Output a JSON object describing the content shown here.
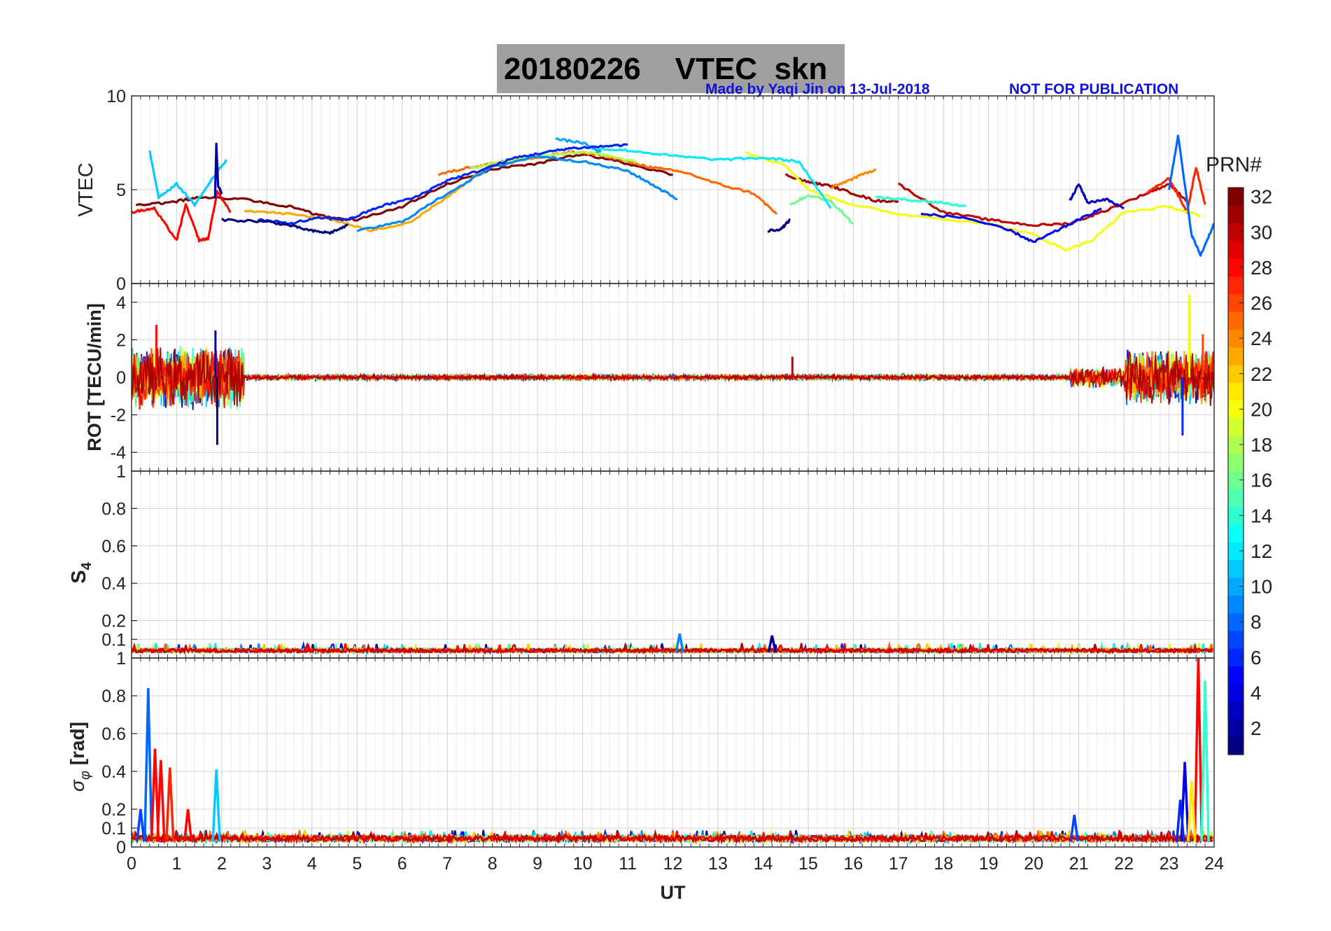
{
  "header": {
    "title": "20180226    VTEC  skn",
    "credit": "Made by Yaqi Jin on 13-Jul-2018",
    "notice": "NOT FOR PUBLICATION"
  },
  "colorbar": {
    "label": "PRN#",
    "ticks": [
      2,
      4,
      6,
      8,
      10,
      12,
      14,
      16,
      18,
      20,
      22,
      24,
      26,
      28,
      30,
      32
    ],
    "range": [
      1,
      32
    ],
    "colormap": "jet"
  },
  "chart_data": [
    {
      "type": "line",
      "panel": "vtec",
      "ylabel": "VTEC",
      "xlabel": "",
      "xlim": [
        0,
        24
      ],
      "ylim": [
        0,
        10
      ],
      "yticks": [
        0,
        5,
        10
      ],
      "xticks": [
        0,
        1,
        2,
        3,
        4,
        5,
        6,
        7,
        8,
        9,
        10,
        11,
        12,
        13,
        14,
        15,
        16,
        17,
        18,
        19,
        20,
        21,
        22,
        23,
        24
      ],
      "grid": true,
      "series": [
        {
          "prn": 32,
          "x": [
            0.1,
            0.8,
            1.5,
            2.5,
            3.5,
            4.2,
            5.0,
            6.0,
            7.0,
            8.0,
            9.0,
            10.0,
            11.0,
            12.0
          ],
          "y": [
            4.2,
            4.3,
            4.6,
            4.5,
            4.1,
            3.6,
            3.4,
            4.1,
            5.3,
            6.1,
            6.4,
            6.9,
            6.4,
            5.8
          ]
        },
        {
          "prn": 31,
          "x": [
            14.5,
            15.0,
            15.5,
            16.0,
            16.5,
            17.0
          ],
          "y": [
            5.8,
            5.4,
            5.2,
            4.8,
            4.4,
            4.4
          ]
        },
        {
          "prn": 30,
          "x": [
            17.0,
            18.0,
            19.0,
            20.0,
            20.8,
            21.5,
            22.5,
            23.0,
            23.4
          ],
          "y": [
            5.3,
            3.8,
            3.4,
            3.1,
            3.2,
            3.8,
            4.8,
            5.3,
            4.4
          ]
        },
        {
          "prn": 28,
          "x": [
            0.0,
            0.5,
            1.0,
            1.2,
            1.5,
            1.7,
            1.9,
            2.2
          ],
          "y": [
            3.8,
            4.0,
            2.3,
            4.2,
            2.3,
            2.4,
            4.9,
            3.8
          ]
        },
        {
          "prn": 27,
          "x": [
            22.5,
            23.0,
            23.4,
            23.6,
            23.8
          ],
          "y": [
            4.8,
            5.6,
            3.8,
            6.2,
            4.2
          ]
        },
        {
          "prn": 25,
          "x": [
            6.8,
            7.5,
            8.0,
            8.5,
            9.0,
            9.7,
            10.3,
            11.0,
            11.5,
            12.3,
            13.0,
            13.8,
            14.3
          ],
          "y": [
            5.8,
            6.2,
            6.4,
            6.6,
            6.7,
            7.0,
            6.9,
            6.5,
            6.2,
            5.9,
            5.3,
            4.8,
            3.7
          ]
        },
        {
          "prn": 24,
          "x": [
            15.5,
            16.0,
            16.5
          ],
          "y": [
            5.1,
            5.6,
            6.1
          ]
        },
        {
          "prn": 23,
          "x": [
            2.5,
            3.5,
            4.5,
            5.3,
            6.2,
            7.0,
            7.8,
            8.5
          ],
          "y": [
            3.9,
            3.7,
            3.4,
            2.8,
            3.3,
            4.6,
            6.1,
            6.7
          ]
        },
        {
          "prn": 20,
          "x": [
            13.6,
            14.5,
            15.0,
            16.0,
            17.0,
            19.0,
            20.0,
            20.7,
            21.3,
            22.0,
            23.0,
            23.7
          ],
          "y": [
            7.0,
            6.3,
            5.0,
            4.2,
            3.7,
            3.2,
            2.6,
            1.8,
            2.3,
            3.8,
            4.1,
            3.6
          ]
        },
        {
          "prn": 18,
          "x": [
            7.5,
            8.0,
            8.7,
            9.4,
            10.0,
            10.6,
            11.2
          ],
          "y": [
            6.1,
            6.4,
            6.7,
            6.9,
            7.0,
            6.8,
            6.5
          ]
        },
        {
          "prn": 16,
          "x": [
            14.6,
            15.0,
            15.5,
            16.0
          ],
          "y": [
            4.2,
            4.7,
            4.4,
            3.2
          ]
        },
        {
          "prn": 14,
          "x": [
            16.5,
            17.0,
            17.5,
            18.0,
            18.5
          ],
          "y": [
            4.6,
            4.5,
            4.4,
            4.3,
            4.1
          ]
        },
        {
          "prn": 12,
          "x": [
            10.2,
            11.0,
            12.0,
            13.0,
            14.0,
            14.8,
            15.5
          ],
          "y": [
            7.2,
            7.1,
            6.8,
            6.6,
            6.7,
            6.5,
            4.0
          ]
        },
        {
          "prn": 11,
          "x": [
            0.4,
            0.6,
            1.0,
            1.4,
            1.8,
            2.1
          ],
          "y": [
            7.1,
            4.6,
            5.3,
            4.2,
            5.6,
            6.6
          ]
        },
        {
          "prn": 10,
          "x": [
            9.4,
            10.0,
            10.4
          ],
          "y": [
            7.7,
            7.5,
            7.0
          ]
        },
        {
          "prn": 9,
          "x": [
            5.0,
            6.0,
            7.0,
            8.0,
            9.0,
            10.0,
            11.0,
            11.6,
            12.1
          ],
          "y": [
            2.8,
            3.3,
            4.8,
            6.2,
            6.8,
            6.5,
            6.0,
            5.2,
            4.5
          ]
        },
        {
          "prn": 8,
          "x": [
            23.0,
            23.2,
            23.5,
            23.7,
            24.0
          ],
          "y": [
            5.0,
            7.9,
            2.6,
            1.5,
            3.2
          ]
        },
        {
          "prn": 6,
          "x": [
            2.8,
            3.5,
            4.2,
            4.8,
            5.5,
            6.3,
            7.0,
            7.7,
            8.5,
            9.2,
            9.7,
            10.4,
            11.0
          ],
          "y": [
            3.4,
            3.2,
            3.5,
            3.4,
            4.1,
            4.6,
            5.5,
            6.0,
            6.7,
            7.0,
            7.2,
            7.3,
            7.4
          ]
        },
        {
          "prn": 5,
          "x": [
            17.5,
            18.5,
            19.5,
            20.0,
            20.5,
            21.0,
            21.5
          ],
          "y": [
            3.7,
            3.5,
            2.8,
            2.2,
            2.8,
            3.4,
            4.0
          ]
        },
        {
          "prn": 3,
          "x": [
            20.8,
            21.0,
            21.2,
            21.6,
            22.0
          ],
          "y": [
            4.4,
            5.3,
            4.3,
            4.5,
            4.0
          ]
        },
        {
          "prn": 1,
          "x": [
            2.0,
            3.0,
            3.5,
            4.0,
            4.4,
            4.8
          ],
          "y": [
            3.4,
            3.3,
            3.1,
            2.8,
            2.7,
            3.1
          ]
        },
        {
          "prn": 1,
          "x": [
            14.1,
            14.4,
            14.6
          ],
          "y": [
            2.8,
            2.9,
            3.4
          ]
        },
        {
          "prn": 2,
          "x": [
            1.85,
            1.88,
            1.92,
            2.0
          ],
          "y": [
            4.5,
            7.4,
            5.2,
            4.8
          ]
        }
      ]
    },
    {
      "type": "line",
      "panel": "rot",
      "ylabel": "ROT [TECU/min]",
      "xlabel": "",
      "xlim": [
        0,
        24
      ],
      "ylim": [
        -5,
        5
      ],
      "yticks": [
        -4,
        -2,
        0,
        2,
        4
      ],
      "grid": true,
      "noise": [
        {
          "x0": 0.0,
          "x1": 2.5,
          "amp": 1.8
        },
        {
          "x0": 2.5,
          "x1": 20.8,
          "amp": 0.15
        },
        {
          "x0": 20.8,
          "x1": 22.0,
          "amp": 0.6
        },
        {
          "x0": 22.0,
          "x1": 24.0,
          "amp": 1.6
        }
      ],
      "spikes": [
        {
          "x": 0.55,
          "y": 2.8,
          "prn": 28
        },
        {
          "x": 1.86,
          "y": 2.5,
          "prn": 2
        },
        {
          "x": 1.9,
          "y": -3.6,
          "prn": 1
        },
        {
          "x": 14.65,
          "y": 1.1,
          "prn": 30
        },
        {
          "x": 23.45,
          "y": 4.4,
          "prn": 20
        },
        {
          "x": 23.3,
          "y": -3.1,
          "prn": 6
        },
        {
          "x": 23.75,
          "y": 2.3,
          "prn": 26
        }
      ]
    },
    {
      "type": "line",
      "panel": "s4",
      "ylabel": "S4",
      "xlabel": "",
      "xlim": [
        0,
        24
      ],
      "ylim": [
        0,
        1
      ],
      "yticks": [
        0.1,
        0.2,
        0.4,
        0.6,
        0.8,
        1
      ],
      "grid": true,
      "baseline": [
        0.03,
        0.05
      ],
      "spikes": [
        {
          "x": 12.15,
          "y": 0.13,
          "prn": 9
        },
        {
          "x": 14.2,
          "y": 0.12,
          "prn": 2
        },
        {
          "x": 3.9,
          "y": 0.07,
          "prn": 29
        }
      ]
    },
    {
      "type": "line",
      "panel": "sigma_phi",
      "ylabel": "σφ [rad]",
      "xlabel": "UT",
      "xlim": [
        0,
        24
      ],
      "ylim": [
        0,
        1
      ],
      "yticks": [
        0,
        0.1,
        0.2,
        0.4,
        0.6,
        0.8,
        1
      ],
      "xticks": [
        0,
        1,
        2,
        3,
        4,
        5,
        6,
        7,
        8,
        9,
        10,
        11,
        12,
        13,
        14,
        15,
        16,
        17,
        18,
        19,
        20,
        21,
        22,
        23,
        24
      ],
      "grid": true,
      "baseline": [
        0.03,
        0.06
      ],
      "spikes": [
        {
          "x": 0.37,
          "y": 0.84,
          "prn": 8
        },
        {
          "x": 0.52,
          "y": 0.52,
          "prn": 28
        },
        {
          "x": 0.65,
          "y": 0.46,
          "prn": 28
        },
        {
          "x": 0.85,
          "y": 0.42,
          "prn": 27
        },
        {
          "x": 1.25,
          "y": 0.2,
          "prn": 28
        },
        {
          "x": 1.88,
          "y": 0.41,
          "prn": 11
        },
        {
          "x": 0.2,
          "y": 0.2,
          "prn": 7
        },
        {
          "x": 20.9,
          "y": 0.17,
          "prn": 7
        },
        {
          "x": 23.35,
          "y": 0.45,
          "prn": 4
        },
        {
          "x": 23.25,
          "y": 0.25,
          "prn": 6
        },
        {
          "x": 23.65,
          "y": 1.0,
          "prn": 28
        },
        {
          "x": 23.8,
          "y": 0.88,
          "prn": 14
        },
        {
          "x": 23.5,
          "y": 0.35,
          "prn": 21
        }
      ]
    }
  ]
}
